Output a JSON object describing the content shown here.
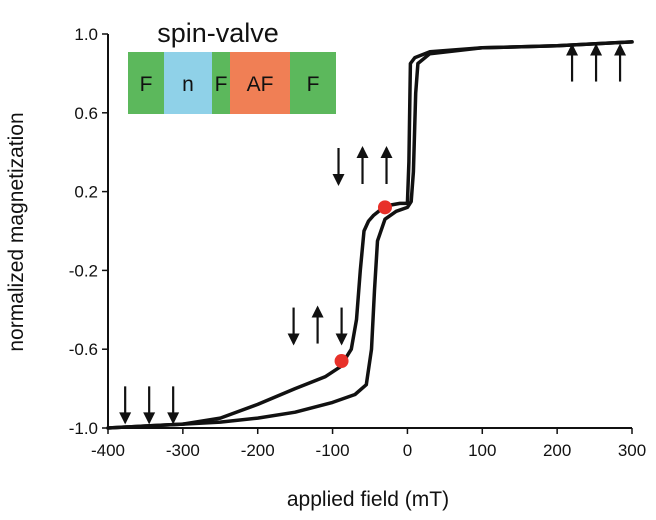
{
  "chart_data": {
    "type": "line",
    "title": "",
    "xlabel": "applied field (mT)",
    "ylabel": "normalized magnetization",
    "xlim": [
      -400,
      300
    ],
    "ylim": [
      -1.0,
      1.0
    ],
    "x_ticks": [
      "-400",
      "-300",
      "-200",
      "-100",
      "0",
      "100",
      "200",
      "300"
    ],
    "y_ticks": [
      "-1.0",
      "-0.6",
      "-0.2",
      "0.2",
      "0.6",
      "1.0"
    ],
    "grid": false,
    "series": [
      {
        "points": [
          [
            -400,
            -1.0
          ],
          [
            -350,
            -0.99
          ],
          [
            -300,
            -0.98
          ],
          [
            -250,
            -0.95
          ],
          [
            -200,
            -0.88
          ],
          [
            -150,
            -0.8
          ],
          [
            -110,
            -0.74
          ],
          [
            -90,
            -0.69
          ],
          [
            -75,
            -0.6
          ],
          [
            -68,
            -0.45
          ],
          [
            -63,
            -0.2
          ],
          [
            -58,
            0.0
          ],
          [
            -52,
            0.05
          ],
          [
            -45,
            0.08
          ],
          [
            -35,
            0.11
          ],
          [
            -25,
            0.13
          ],
          [
            -10,
            0.14
          ],
          [
            0,
            0.14
          ],
          [
            2,
            0.35
          ],
          [
            4,
            0.85
          ],
          [
            10,
            0.88
          ],
          [
            30,
            0.91
          ],
          [
            100,
            0.93
          ],
          [
            200,
            0.94
          ],
          [
            300,
            0.96
          ]
        ],
        "color": "#111111"
      },
      {
        "points": [
          [
            -400,
            -1.0
          ],
          [
            -350,
            -0.99
          ],
          [
            -300,
            -0.98
          ],
          [
            -250,
            -0.97
          ],
          [
            -200,
            -0.95
          ],
          [
            -150,
            -0.92
          ],
          [
            -100,
            -0.87
          ],
          [
            -70,
            -0.83
          ],
          [
            -55,
            -0.78
          ],
          [
            -48,
            -0.6
          ],
          [
            -44,
            -0.3
          ],
          [
            -40,
            -0.05
          ],
          [
            -30,
            0.06
          ],
          [
            -15,
            0.1
          ],
          [
            0,
            0.12
          ],
          [
            5,
            0.15
          ],
          [
            8,
            0.3
          ],
          [
            11,
            0.7
          ],
          [
            14,
            0.85
          ],
          [
            30,
            0.9
          ],
          [
            100,
            0.93
          ],
          [
            200,
            0.94
          ],
          [
            300,
            0.96
          ]
        ],
        "color": "#111111"
      }
    ],
    "markers": [
      {
        "x": -88,
        "y": -0.66,
        "color": "#e8312a"
      },
      {
        "x": -30,
        "y": 0.12,
        "color": "#e8312a"
      }
    ],
    "inset": {
      "title": "spin-valve",
      "layers": [
        {
          "label": "F",
          "color": "#5cb85c"
        },
        {
          "label": "n",
          "color": "#8fd1e8"
        },
        {
          "label": "F",
          "color": "#5cb85c"
        },
        {
          "label": "AF",
          "color": "#f07f55"
        },
        {
          "label": "F",
          "color": "#5cb85c"
        }
      ]
    },
    "arrow_annotations": [
      {
        "x": -345,
        "y": -0.88,
        "directions": [
          "down",
          "down",
          "down"
        ]
      },
      {
        "x": -120,
        "y": -0.48,
        "directions": [
          "down",
          "up",
          "down"
        ]
      },
      {
        "x": -60,
        "y": 0.33,
        "directions": [
          "down",
          "up",
          "up"
        ]
      },
      {
        "x": 252,
        "y": 0.85,
        "directions": [
          "up",
          "up",
          "up"
        ]
      }
    ]
  }
}
